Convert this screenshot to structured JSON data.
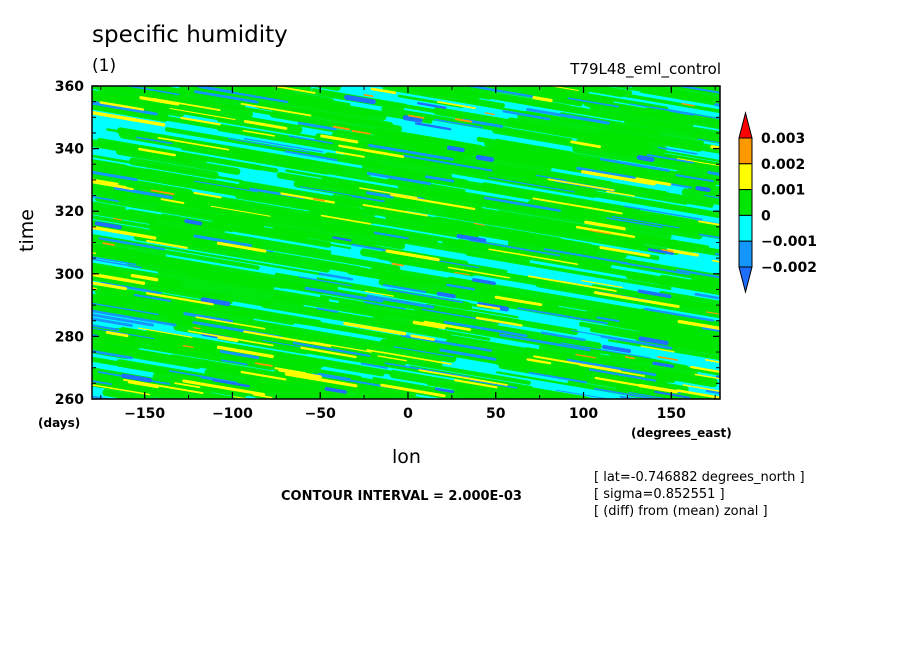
{
  "title": "specific humidity",
  "units": "(1)",
  "dataset": "T79L48_eml_control",
  "contour_interval": "CONTOUR INTERVAL = 2.000E-03",
  "meta": [
    "[ lat=-0.746882 degrees_north ]",
    "[ sigma=0.852551 ]",
    "[ (diff) from (mean) zonal ]"
  ],
  "chart_data": {
    "type": "heatmap",
    "title": "specific humidity",
    "subtitle": "(1)",
    "xlabel": "lon",
    "xunits": "(degrees_east)",
    "ylabel": "time",
    "yunits": "(days)",
    "xlim": [
      -180,
      177.75
    ],
    "ylim": [
      260,
      360
    ],
    "x_ticks": [
      -150,
      -100,
      -50,
      0,
      50,
      100,
      150
    ],
    "y_ticks": [
      260,
      280,
      300,
      320,
      340,
      360
    ],
    "x_tick_labels": [
      "−150",
      "−100",
      "−50",
      "0",
      "50",
      "100",
      "150"
    ],
    "y_tick_labels": [
      "260",
      "280",
      "300",
      "320",
      "340",
      "360"
    ],
    "colorbar": {
      "levels": [
        -0.002,
        -0.001,
        0,
        0.001,
        0.002,
        0.003
      ],
      "level_labels": [
        "−0.002",
        "−0.001",
        "0",
        "0.001",
        "0.002",
        "0.003"
      ],
      "colors": [
        "#1e6eff",
        "#1496ff",
        "#00ffff",
        "#00e600",
        "#ffff00",
        "#ff9900",
        "#ff0000"
      ]
    },
    "background_band": "#00ffff",
    "dominant_band": "#00e600",
    "streak_direction": "westward-propagating, slopes downward toward east"
  }
}
